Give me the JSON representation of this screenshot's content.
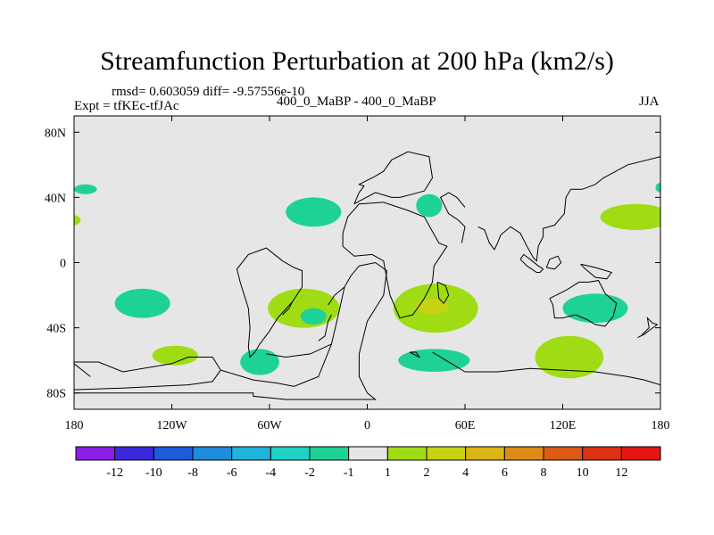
{
  "title": "Streamfunction Perturbation at 200 hPa (km2/s)",
  "stats": "rmsd= 0.603059 diff= -9.57556e-10",
  "expt": "Expt = tfKEc-tfJAc",
  "case": "400_0_MaBP - 400_0_MaBP",
  "season": "JJA",
  "chart_data": {
    "type": "heatmap",
    "xlim": [
      -180,
      180
    ],
    "ylim": [
      -90,
      90
    ],
    "x_ticks": [
      {
        "value": -180,
        "label": "180"
      },
      {
        "value": -120,
        "label": "120W"
      },
      {
        "value": -60,
        "label": "60W"
      },
      {
        "value": 0,
        "label": "0"
      },
      {
        "value": 60,
        "label": "60E"
      },
      {
        "value": 120,
        "label": "120E"
      },
      {
        "value": 180,
        "label": "180"
      }
    ],
    "y_ticks": [
      {
        "value": 80,
        "label": "80N"
      },
      {
        "value": 40,
        "label": "40N"
      },
      {
        "value": 0,
        "label": "0"
      },
      {
        "value": -40,
        "label": "40S"
      },
      {
        "value": -80,
        "label": "80S"
      }
    ],
    "colorbar": {
      "labels": [
        "-12",
        "-10",
        "-8",
        "-6",
        "-4",
        "-2",
        "-1",
        "1",
        "2",
        "4",
        "6",
        "8",
        "10",
        "12"
      ],
      "colors": [
        "#8a1ee6",
        "#3c28dc",
        "#1e5adc",
        "#1e8cdc",
        "#1eb4dc",
        "#1ed2c8",
        "#1ed296",
        "#e6e6e6",
        "#a0dc14",
        "#c8d214",
        "#dcb414",
        "#dc8c14",
        "#dc5a14",
        "#dc3214",
        "#e61414"
      ]
    },
    "features": [
      {
        "lon": -173,
        "lat": 45,
        "rlon": 7,
        "rlat": 3,
        "color": "#1ed296"
      },
      {
        "lon": -180,
        "lat": 26,
        "rlon": 4,
        "rlat": 3,
        "color": "#a0dc14"
      },
      {
        "lon": -33,
        "lat": 31,
        "rlon": 17,
        "rlat": 9,
        "color": "#1ed296"
      },
      {
        "lon": 38,
        "lat": 35,
        "rlon": 8,
        "rlat": 7,
        "color": "#1ed296"
      },
      {
        "lon": 165,
        "lat": 28,
        "rlon": 22,
        "rlat": 8,
        "color": "#a0dc14"
      },
      {
        "lon": 180,
        "lat": 46,
        "rlon": 3,
        "rlat": 3,
        "color": "#1ed296"
      },
      {
        "lon": -138,
        "lat": -25,
        "rlon": 17,
        "rlat": 9,
        "color": "#1ed296"
      },
      {
        "lon": -39,
        "lat": -28,
        "rlon": 22,
        "rlat": 12,
        "color": "#a0dc14"
      },
      {
        "lon": -33,
        "lat": -33,
        "rlon": 8,
        "rlat": 5,
        "color": "#1ed296"
      },
      {
        "lon": 42,
        "lat": -28,
        "rlon": 26,
        "rlat": 15,
        "color": "#a0dc14"
      },
      {
        "lon": 40,
        "lat": -27,
        "rlon": 10,
        "rlat": 5,
        "color": "#c8d214"
      },
      {
        "lon": 140,
        "lat": -28,
        "rlon": 20,
        "rlat": 9,
        "color": "#1ed296"
      },
      {
        "lon": -118,
        "lat": -57,
        "rlon": 14,
        "rlat": 6,
        "color": "#a0dc14"
      },
      {
        "lon": -66,
        "lat": -61,
        "rlon": 12,
        "rlat": 8,
        "color": "#1ed296"
      },
      {
        "lon": 41,
        "lat": -60,
        "rlon": 22,
        "rlat": 7,
        "color": "#1ed296"
      },
      {
        "lon": 124,
        "lat": -58,
        "rlon": 21,
        "rlat": 13,
        "color": "#a0dc14"
      }
    ],
    "coastlines": [
      [
        [
          -180,
          -61
        ],
        [
          -165,
          -61
        ],
        [
          -150,
          -67
        ],
        [
          -120,
          -62
        ],
        [
          -110,
          -58
        ],
        [
          -95,
          -58
        ],
        [
          -90,
          -66
        ],
        [
          -70,
          -72
        ],
        [
          -55,
          -74
        ],
        [
          -45,
          -76
        ],
        [
          -30,
          -70
        ],
        [
          -22,
          -50
        ],
        [
          -18,
          -33
        ],
        [
          -14,
          -15
        ],
        [
          -10,
          -8
        ],
        [
          -5,
          -2
        ],
        [
          5,
          0
        ],
        [
          12,
          -5
        ],
        [
          10,
          -20
        ],
        [
          0,
          -36
        ],
        [
          -5,
          -56
        ],
        [
          -5,
          -70
        ],
        [
          0,
          -80
        ],
        [
          5,
          -84
        ],
        [
          -50,
          -84
        ],
        [
          -70,
          -82
        ],
        [
          -70,
          -80
        ],
        [
          -125,
          -80
        ],
        [
          -180,
          -80
        ]
      ],
      [
        [
          -52,
          1
        ],
        [
          -45,
          -3
        ],
        [
          -40,
          -5
        ],
        [
          -40,
          -15
        ],
        [
          -46,
          -24
        ],
        [
          -55,
          -34
        ],
        [
          -60,
          -42
        ],
        [
          -66,
          -50
        ],
        [
          -69,
          -55
        ],
        [
          -72,
          -58
        ],
        [
          -73,
          -52
        ],
        [
          -72,
          -40
        ],
        [
          -73,
          -28
        ],
        [
          -78,
          -12
        ],
        [
          -80,
          -4
        ],
        [
          -73,
          5
        ],
        [
          -62,
          9
        ],
        [
          -52,
          1
        ]
      ],
      [
        [
          -15,
          18
        ],
        [
          -15,
          10
        ],
        [
          -8,
          4
        ],
        [
          3,
          5
        ],
        [
          10,
          1
        ],
        [
          12,
          -10
        ],
        [
          14,
          -20
        ],
        [
          20,
          -34
        ],
        [
          28,
          -32
        ],
        [
          35,
          -22
        ],
        [
          40,
          -12
        ],
        [
          41,
          -2
        ],
        [
          49,
          10
        ],
        [
          44,
          12
        ],
        [
          35,
          28
        ],
        [
          25,
          32
        ],
        [
          10,
          37
        ],
        [
          -5,
          36
        ],
        [
          -12,
          28
        ],
        [
          -15,
          18
        ]
      ],
      [
        [
          -8,
          36
        ],
        [
          -5,
          43
        ],
        [
          -2,
          47
        ],
        [
          -5,
          48
        ],
        [
          5,
          53
        ],
        [
          10,
          56
        ],
        [
          15,
          63
        ],
        [
          25,
          68
        ],
        [
          38,
          65
        ],
        [
          40,
          52
        ],
        [
          35,
          44
        ],
        [
          28,
          42
        ],
        [
          20,
          40
        ],
        [
          15,
          40
        ],
        [
          5,
          43
        ],
        [
          -8,
          36
        ]
      ],
      [
        [
          68,
          22
        ],
        [
          72,
          20
        ],
        [
          75,
          12
        ],
        [
          78,
          8
        ],
        [
          80,
          12
        ],
        [
          82,
          17
        ],
        [
          88,
          22
        ],
        [
          94,
          18
        ],
        [
          98,
          10
        ],
        [
          102,
          3
        ],
        [
          104,
          1
        ],
        [
          105,
          10
        ],
        [
          108,
          16
        ],
        [
          108,
          21
        ],
        [
          115,
          23
        ],
        [
          121,
          30
        ],
        [
          122,
          40
        ],
        [
          125,
          45
        ],
        [
          132,
          45
        ],
        [
          140,
          48
        ],
        [
          145,
          52
        ],
        [
          160,
          60
        ],
        [
          180,
          65
        ]
      ],
      [
        [
          112,
          -22
        ],
        [
          114,
          -26
        ],
        [
          115,
          -34
        ],
        [
          120,
          -34
        ],
        [
          128,
          -32
        ],
        [
          135,
          -35
        ],
        [
          140,
          -38
        ],
        [
          146,
          -39
        ],
        [
          151,
          -33
        ],
        [
          153,
          -25
        ],
        [
          146,
          -19
        ],
        [
          142,
          -11
        ],
        [
          136,
          -12
        ],
        [
          130,
          -12
        ],
        [
          122,
          -17
        ],
        [
          112,
          -22
        ]
      ],
      [
        [
          94,
          2
        ],
        [
          98,
          -2
        ],
        [
          104,
          -6
        ],
        [
          106,
          -6
        ],
        [
          108,
          -4
        ],
        [
          105,
          -2
        ],
        [
          100,
          2
        ],
        [
          96,
          5
        ],
        [
          94,
          2
        ]
      ],
      [
        [
          110,
          -3
        ],
        [
          115,
          -4
        ],
        [
          119,
          0
        ],
        [
          117,
          4
        ],
        [
          112,
          2
        ],
        [
          110,
          -3
        ]
      ],
      [
        [
          131,
          -1
        ],
        [
          140,
          -3
        ],
        [
          150,
          -6
        ],
        [
          147,
          -10
        ],
        [
          140,
          -9
        ],
        [
          134,
          -4
        ],
        [
          131,
          -1
        ]
      ],
      [
        [
          166,
          -46
        ],
        [
          170,
          -44
        ],
        [
          174,
          -41
        ],
        [
          178,
          -38
        ],
        [
          175,
          -37
        ],
        [
          172,
          -34
        ],
        [
          173,
          -40
        ],
        [
          168,
          -45
        ],
        [
          166,
          -46
        ]
      ],
      [
        [
          -180,
          -62
        ],
        [
          -175,
          -66
        ],
        [
          -170,
          -70
        ]
      ],
      [
        [
          -90,
          -66
        ],
        [
          -95,
          -73
        ],
        [
          -110,
          -75
        ],
        [
          -130,
          -76
        ],
        [
          -150,
          -77
        ],
        [
          -180,
          -78
        ]
      ],
      [
        [
          40,
          -55
        ],
        [
          60,
          -67
        ],
        [
          80,
          -67
        ],
        [
          100,
          -65
        ],
        [
          120,
          -66
        ],
        [
          140,
          -67
        ],
        [
          160,
          -70
        ],
        [
          170,
          -72
        ],
        [
          180,
          -75
        ]
      ],
      [
        [
          -46,
          -24
        ],
        [
          -48,
          -28
        ],
        [
          -52,
          -32
        ]
      ],
      [
        [
          -14,
          -15
        ],
        [
          -20,
          -20
        ],
        [
          -24,
          -26
        ]
      ],
      [
        [
          -30,
          -48
        ],
        [
          -26,
          -45
        ],
        [
          -24,
          -36
        ],
        [
          -22,
          -32
        ]
      ],
      [
        [
          -22,
          -50
        ],
        [
          -35,
          -56
        ],
        [
          -50,
          -58
        ],
        [
          -62,
          -56
        ]
      ],
      [
        [
          43,
          -12
        ],
        [
          48,
          -14
        ],
        [
          50,
          -20
        ],
        [
          47,
          -25
        ],
        [
          44,
          -22
        ],
        [
          43,
          -12
        ]
      ],
      [
        [
          26,
          -55
        ],
        [
          30,
          -55
        ],
        [
          32,
          -58
        ],
        [
          26,
          -55
        ]
      ],
      [
        [
          58,
          12
        ],
        [
          60,
          22
        ],
        [
          56,
          26
        ],
        [
          50,
          30
        ],
        [
          45,
          40
        ],
        [
          50,
          43
        ],
        [
          55,
          40
        ],
        [
          60,
          34
        ]
      ]
    ]
  }
}
